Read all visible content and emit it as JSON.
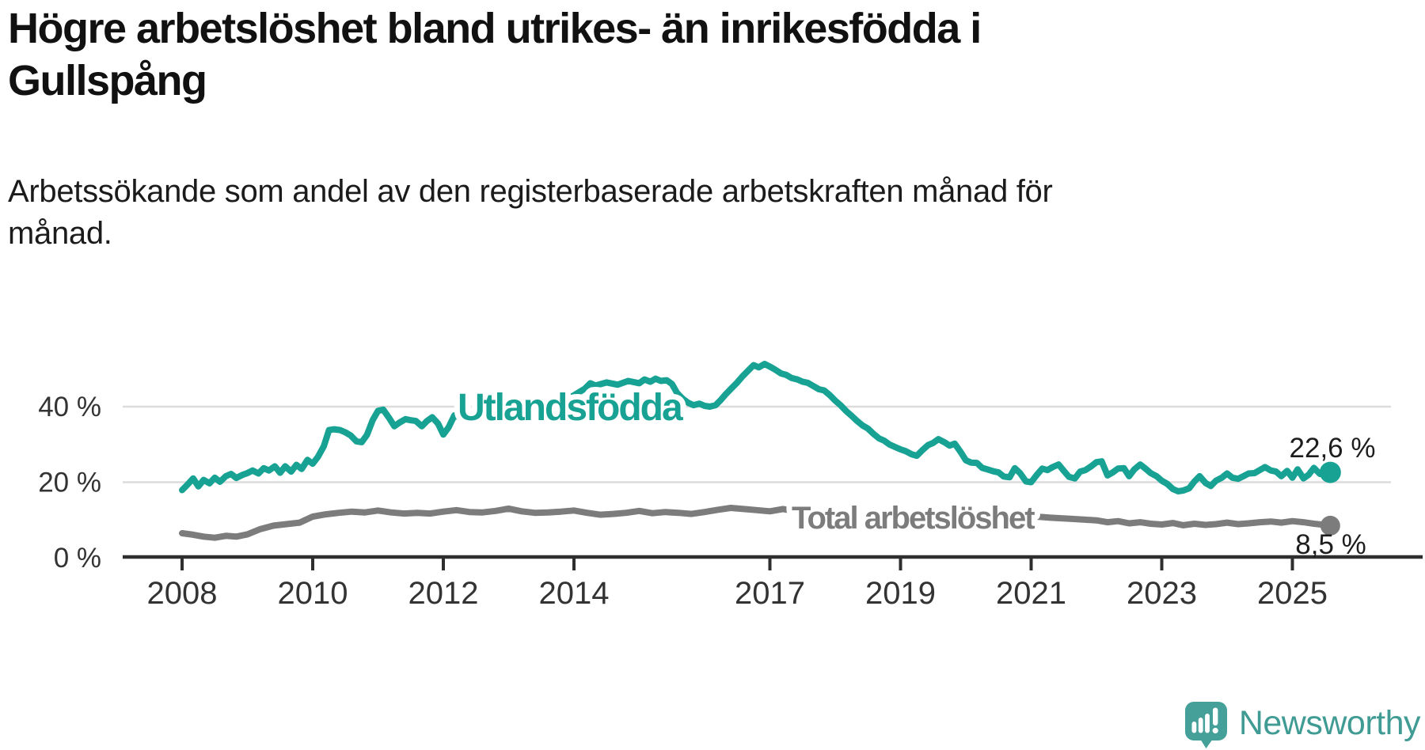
{
  "header": {
    "title": "Högre arbetslöshet bland utrikes- än inrikesfödda i Gullspång",
    "title_lines": [
      "Högre arbetslöshet bland utrikes- än inrikesfödda i",
      "Gullspång"
    ],
    "subtitle": "Arbetssökande som andel av den registerbaserade arbetskraften månad för månad.",
    "subtitle_lines": [
      "Arbetssökande som andel av den registerbaserade arbetskraften månad för",
      "månad."
    ]
  },
  "chart_data": {
    "type": "line",
    "title": "Högre arbetslöshet bland utrikes- än inrikesfödda i Gullspång",
    "xlabel": "",
    "ylabel": "",
    "x_axis": {
      "ticks": [
        2008,
        2010,
        2012,
        2014,
        2017,
        2019,
        2021,
        2023,
        2025
      ],
      "range": [
        2007.7,
        2026.2
      ]
    },
    "y_axis": {
      "unit": "%",
      "ticks": [
        {
          "value": 40,
          "label": "40 %"
        },
        {
          "value": 20,
          "label": "20 %"
        },
        {
          "value": 0,
          "label": "0 %"
        }
      ],
      "gridline_values": [
        40,
        20
      ],
      "range": [
        0,
        55
      ],
      "grid": true
    },
    "style": {
      "grid_color": "#dcdcdc",
      "axis_color": "#2e2e2e",
      "tick_label_color": "#333333",
      "value_label_color": "#1d1d1d"
    },
    "legend_position": "inline-labels",
    "series": [
      {
        "name": "Utlandsfödda",
        "color": "#17a294",
        "end_value": 22.6,
        "end_label": "22,6 %",
        "points": [
          [
            2008.0,
            17.9
          ],
          [
            2008.08,
            19.3
          ],
          [
            2008.17,
            21.0
          ],
          [
            2008.25,
            18.9
          ],
          [
            2008.33,
            20.6
          ],
          [
            2008.42,
            19.7
          ],
          [
            2008.5,
            21.2
          ],
          [
            2008.58,
            20.1
          ],
          [
            2008.67,
            21.6
          ],
          [
            2008.75,
            22.2
          ],
          [
            2008.83,
            21.1
          ],
          [
            2008.92,
            21.9
          ],
          [
            2009.0,
            22.4
          ],
          [
            2009.08,
            23.1
          ],
          [
            2009.17,
            22.3
          ],
          [
            2009.25,
            23.7
          ],
          [
            2009.33,
            23.1
          ],
          [
            2009.42,
            24.2
          ],
          [
            2009.5,
            22.5
          ],
          [
            2009.58,
            24.2
          ],
          [
            2009.67,
            22.8
          ],
          [
            2009.75,
            24.6
          ],
          [
            2009.83,
            23.5
          ],
          [
            2009.92,
            25.9
          ],
          [
            2010.0,
            24.9
          ],
          [
            2010.08,
            26.7
          ],
          [
            2010.17,
            29.5
          ],
          [
            2010.25,
            33.8
          ],
          [
            2010.33,
            34.0
          ],
          [
            2010.42,
            33.8
          ],
          [
            2010.5,
            33.2
          ],
          [
            2010.58,
            32.4
          ],
          [
            2010.67,
            30.8
          ],
          [
            2010.75,
            30.6
          ],
          [
            2010.83,
            32.5
          ],
          [
            2010.92,
            36.5
          ],
          [
            2011.0,
            38.9
          ],
          [
            2011.08,
            39.2
          ],
          [
            2011.17,
            37.0
          ],
          [
            2011.25,
            34.8
          ],
          [
            2011.33,
            35.8
          ],
          [
            2011.42,
            36.7
          ],
          [
            2011.5,
            36.4
          ],
          [
            2011.58,
            36.2
          ],
          [
            2011.67,
            34.8
          ],
          [
            2011.75,
            36.2
          ],
          [
            2011.83,
            37.2
          ],
          [
            2011.92,
            35.5
          ],
          [
            2012.0,
            32.6
          ],
          [
            2012.08,
            34.5
          ],
          [
            2012.17,
            37.7
          ],
          [
            2012.33,
            36.6
          ],
          [
            2012.5,
            37.8
          ],
          [
            2012.67,
            37.2
          ],
          [
            2012.83,
            38.4
          ],
          [
            2013.0,
            39.2
          ],
          [
            2013.17,
            38.6
          ],
          [
            2013.33,
            39.8
          ],
          [
            2013.5,
            40.6
          ],
          [
            2013.67,
            40.2
          ],
          [
            2013.83,
            41.6
          ],
          [
            2014.0,
            43.0
          ],
          [
            2014.17,
            44.8
          ],
          [
            2014.25,
            46.2
          ],
          [
            2014.33,
            45.6
          ],
          [
            2014.5,
            46.4
          ],
          [
            2014.67,
            45.8
          ],
          [
            2014.83,
            46.8
          ],
          [
            2015.0,
            46.2
          ],
          [
            2015.08,
            47.2
          ],
          [
            2015.17,
            46.6
          ],
          [
            2015.25,
            47.4
          ],
          [
            2015.33,
            46.8
          ],
          [
            2015.42,
            47.0
          ],
          [
            2015.5,
            46.0
          ],
          [
            2015.58,
            43.6
          ],
          [
            2015.67,
            42.0
          ],
          [
            2015.75,
            41.0
          ],
          [
            2015.83,
            40.4
          ],
          [
            2015.92,
            40.8
          ],
          [
            2016.0,
            40.2
          ],
          [
            2016.08,
            40.0
          ],
          [
            2016.17,
            40.4
          ],
          [
            2016.25,
            41.8
          ],
          [
            2016.33,
            43.4
          ],
          [
            2016.42,
            45.0
          ],
          [
            2016.5,
            46.4
          ],
          [
            2016.58,
            48.0
          ],
          [
            2016.67,
            49.6
          ],
          [
            2016.75,
            51.0
          ],
          [
            2016.83,
            50.4
          ],
          [
            2016.92,
            51.3
          ],
          [
            2017.0,
            50.6
          ],
          [
            2017.08,
            49.8
          ],
          [
            2017.17,
            48.8
          ],
          [
            2017.25,
            48.4
          ],
          [
            2017.33,
            47.6
          ],
          [
            2017.42,
            47.2
          ],
          [
            2017.5,
            46.6
          ],
          [
            2017.58,
            46.3
          ],
          [
            2017.67,
            45.4
          ],
          [
            2017.75,
            44.6
          ],
          [
            2017.83,
            44.3
          ],
          [
            2017.92,
            43.0
          ],
          [
            2018.0,
            41.6
          ],
          [
            2018.08,
            40.4
          ],
          [
            2018.17,
            38.8
          ],
          [
            2018.25,
            37.6
          ],
          [
            2018.33,
            36.3
          ],
          [
            2018.42,
            35.0
          ],
          [
            2018.5,
            34.2
          ],
          [
            2018.58,
            32.9
          ],
          [
            2018.67,
            31.6
          ],
          [
            2018.75,
            31.0
          ],
          [
            2018.83,
            30.0
          ],
          [
            2018.92,
            29.3
          ],
          [
            2019.0,
            28.7
          ],
          [
            2019.08,
            28.2
          ],
          [
            2019.17,
            27.4
          ],
          [
            2019.25,
            27.0
          ],
          [
            2019.33,
            28.4
          ],
          [
            2019.42,
            29.8
          ],
          [
            2019.5,
            30.4
          ],
          [
            2019.58,
            31.4
          ],
          [
            2019.67,
            30.6
          ],
          [
            2019.75,
            29.7
          ],
          [
            2019.83,
            30.2
          ],
          [
            2019.92,
            28.0
          ],
          [
            2020.0,
            25.8
          ],
          [
            2020.08,
            25.2
          ],
          [
            2020.17,
            25.1
          ],
          [
            2020.25,
            23.8
          ],
          [
            2020.33,
            23.4
          ],
          [
            2020.42,
            22.9
          ],
          [
            2020.5,
            22.6
          ],
          [
            2020.58,
            21.5
          ],
          [
            2020.67,
            21.3
          ],
          [
            2020.75,
            23.7
          ],
          [
            2020.83,
            22.4
          ],
          [
            2020.92,
            20.2
          ],
          [
            2021.0,
            20.0
          ],
          [
            2021.08,
            21.8
          ],
          [
            2021.17,
            23.6
          ],
          [
            2021.25,
            23.2
          ],
          [
            2021.33,
            24.0
          ],
          [
            2021.42,
            24.7
          ],
          [
            2021.5,
            23.0
          ],
          [
            2021.58,
            21.4
          ],
          [
            2021.67,
            21.0
          ],
          [
            2021.75,
            22.8
          ],
          [
            2021.83,
            23.2
          ],
          [
            2021.92,
            24.2
          ],
          [
            2022.0,
            25.3
          ],
          [
            2022.08,
            25.5
          ],
          [
            2022.17,
            21.8
          ],
          [
            2022.25,
            22.6
          ],
          [
            2022.33,
            23.6
          ],
          [
            2022.42,
            23.7
          ],
          [
            2022.5,
            21.6
          ],
          [
            2022.58,
            23.4
          ],
          [
            2022.67,
            24.7
          ],
          [
            2022.75,
            23.6
          ],
          [
            2022.83,
            22.4
          ],
          [
            2022.92,
            21.6
          ],
          [
            2023.0,
            20.4
          ],
          [
            2023.08,
            19.6
          ],
          [
            2023.17,
            18.2
          ],
          [
            2023.25,
            17.6
          ],
          [
            2023.33,
            17.8
          ],
          [
            2023.42,
            18.4
          ],
          [
            2023.5,
            20.2
          ],
          [
            2023.58,
            21.6
          ],
          [
            2023.67,
            19.8
          ],
          [
            2023.75,
            19.0
          ],
          [
            2023.83,
            20.4
          ],
          [
            2023.92,
            21.2
          ],
          [
            2024.0,
            22.3
          ],
          [
            2024.08,
            21.2
          ],
          [
            2024.17,
            20.9
          ],
          [
            2024.25,
            21.6
          ],
          [
            2024.33,
            22.3
          ],
          [
            2024.42,
            22.4
          ],
          [
            2024.5,
            23.2
          ],
          [
            2024.58,
            24.0
          ],
          [
            2024.67,
            23.1
          ],
          [
            2024.75,
            22.8
          ],
          [
            2024.83,
            21.6
          ],
          [
            2024.92,
            23.0
          ],
          [
            2025.0,
            21.2
          ],
          [
            2025.08,
            23.4
          ],
          [
            2025.17,
            21.0
          ],
          [
            2025.25,
            22.0
          ],
          [
            2025.33,
            23.8
          ],
          [
            2025.42,
            22.2
          ],
          [
            2025.5,
            22.0
          ],
          [
            2025.58,
            22.6
          ]
        ]
      },
      {
        "name": "Total arbetslöshet",
        "color": "#7c7c7c",
        "end_value": 8.5,
        "end_label": "8,5 %",
        "points": [
          [
            2008.0,
            6.5
          ],
          [
            2008.17,
            6.1
          ],
          [
            2008.33,
            5.6
          ],
          [
            2008.5,
            5.3
          ],
          [
            2008.67,
            5.8
          ],
          [
            2008.83,
            5.6
          ],
          [
            2009.0,
            6.2
          ],
          [
            2009.2,
            7.6
          ],
          [
            2009.4,
            8.5
          ],
          [
            2009.6,
            8.9
          ],
          [
            2009.8,
            9.3
          ],
          [
            2010.0,
            10.9
          ],
          [
            2010.2,
            11.5
          ],
          [
            2010.4,
            11.9
          ],
          [
            2010.6,
            12.2
          ],
          [
            2010.8,
            12.0
          ],
          [
            2011.0,
            12.5
          ],
          [
            2011.2,
            12.0
          ],
          [
            2011.4,
            11.7
          ],
          [
            2011.6,
            11.9
          ],
          [
            2011.8,
            11.7
          ],
          [
            2012.0,
            12.2
          ],
          [
            2012.2,
            12.6
          ],
          [
            2012.4,
            12.1
          ],
          [
            2012.6,
            12.0
          ],
          [
            2012.8,
            12.4
          ],
          [
            2013.0,
            13.0
          ],
          [
            2013.2,
            12.3
          ],
          [
            2013.4,
            11.9
          ],
          [
            2013.6,
            12.0
          ],
          [
            2013.8,
            12.2
          ],
          [
            2014.0,
            12.5
          ],
          [
            2014.2,
            11.9
          ],
          [
            2014.4,
            11.4
          ],
          [
            2014.6,
            11.6
          ],
          [
            2014.8,
            11.9
          ],
          [
            2015.0,
            12.4
          ],
          [
            2015.2,
            11.8
          ],
          [
            2015.4,
            12.1
          ],
          [
            2015.6,
            11.9
          ],
          [
            2015.8,
            11.6
          ],
          [
            2016.0,
            12.1
          ],
          [
            2016.2,
            12.7
          ],
          [
            2016.4,
            13.2
          ],
          [
            2016.6,
            12.9
          ],
          [
            2016.8,
            12.6
          ],
          [
            2017.0,
            12.3
          ],
          [
            2017.2,
            12.9
          ],
          [
            2017.4,
            12.3
          ],
          [
            2017.6,
            11.9
          ],
          [
            2017.8,
            11.7
          ],
          [
            2018.0,
            11.5
          ],
          [
            2018.3,
            11.2
          ],
          [
            2018.6,
            11.0
          ],
          [
            2019.0,
            10.8
          ],
          [
            2019.3,
            10.6
          ],
          [
            2019.6,
            10.5
          ],
          [
            2020.0,
            11.2
          ],
          [
            2020.3,
            11.7
          ],
          [
            2020.6,
            11.5
          ],
          [
            2021.0,
            11.0
          ],
          [
            2021.3,
            10.6
          ],
          [
            2021.6,
            10.3
          ],
          [
            2022.0,
            9.9
          ],
          [
            2022.17,
            9.4
          ],
          [
            2022.33,
            9.7
          ],
          [
            2022.5,
            9.1
          ],
          [
            2022.67,
            9.4
          ],
          [
            2022.83,
            9.0
          ],
          [
            2023.0,
            8.8
          ],
          [
            2023.17,
            9.2
          ],
          [
            2023.33,
            8.6
          ],
          [
            2023.5,
            9.0
          ],
          [
            2023.67,
            8.7
          ],
          [
            2023.83,
            8.9
          ],
          [
            2024.0,
            9.3
          ],
          [
            2024.17,
            8.9
          ],
          [
            2024.33,
            9.1
          ],
          [
            2024.5,
            9.4
          ],
          [
            2024.67,
            9.6
          ],
          [
            2024.83,
            9.3
          ],
          [
            2025.0,
            9.7
          ],
          [
            2025.17,
            9.4
          ],
          [
            2025.33,
            9.0
          ],
          [
            2025.5,
            8.7
          ],
          [
            2025.58,
            8.5
          ]
        ]
      }
    ]
  },
  "branding": {
    "logo_icon": "newsworthy-speech-bubble-bar-chart-icon",
    "wordmark": "Newsworthy",
    "brand_color": "#45a09a"
  }
}
